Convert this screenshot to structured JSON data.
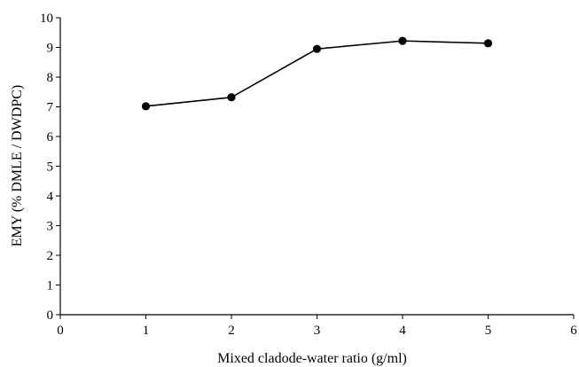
{
  "chart_data": {
    "type": "line",
    "xlabel": "Mixed cladode-water ratio  (g/ml)",
    "ylabel": "EMY  (% DMLE / DWDPC)",
    "xlim": [
      0,
      6
    ],
    "ylim": [
      0,
      10
    ],
    "x_ticks": [
      0,
      1,
      2,
      3,
      4,
      5,
      6
    ],
    "y_ticks": [
      0,
      1,
      2,
      3,
      4,
      5,
      6,
      7,
      8,
      9,
      10
    ],
    "grid": false,
    "series": [
      {
        "x": [
          1,
          2,
          3,
          4,
          5
        ],
        "values": [
          7.02,
          7.32,
          8.95,
          9.22,
          9.14
        ],
        "color": "#000000",
        "marker": "circle"
      }
    ]
  }
}
